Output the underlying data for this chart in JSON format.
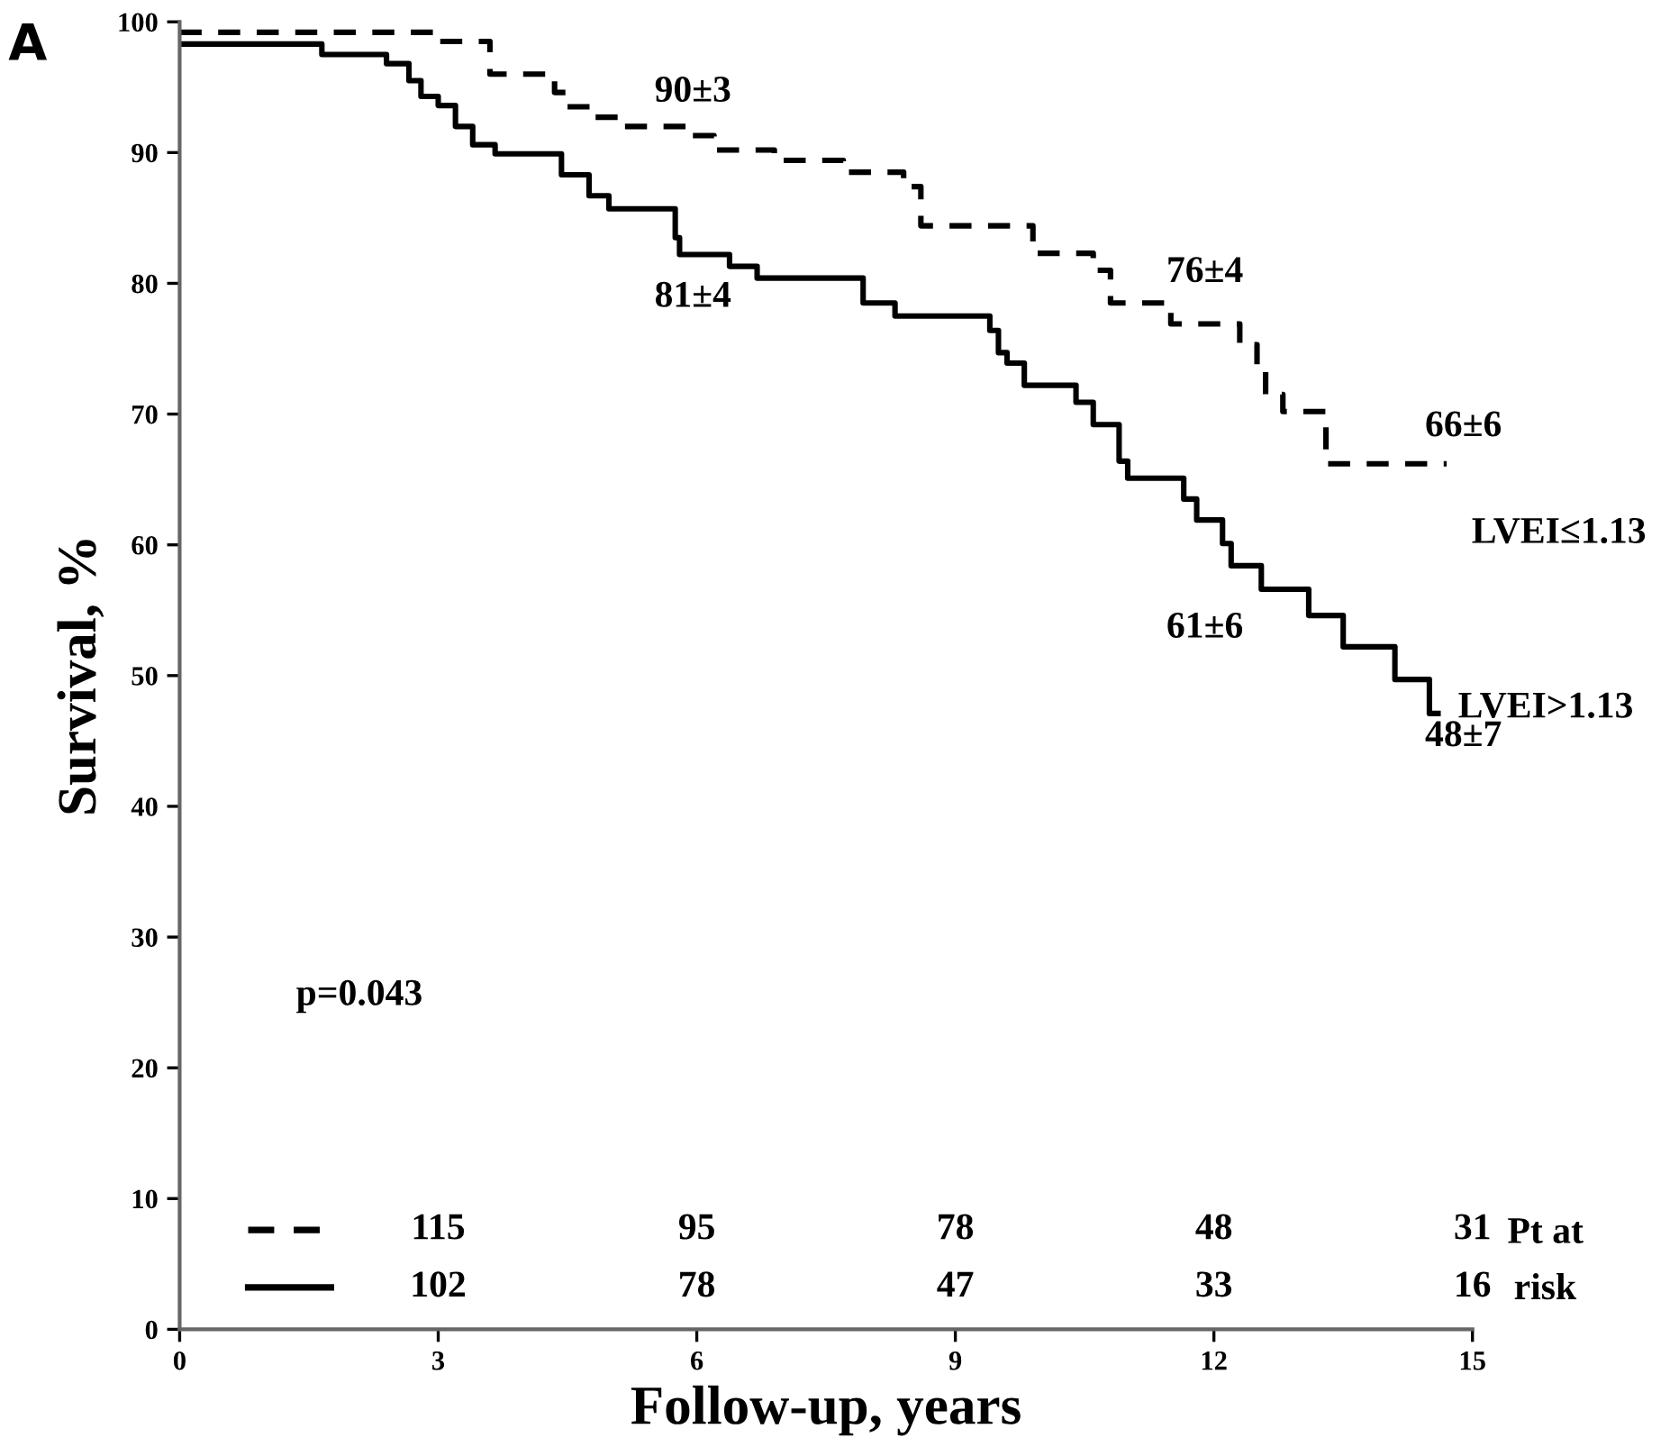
{
  "chart_data": {
    "type": "step",
    "title": "A",
    "xlabel": "Follow-up, years",
    "ylabel": "Survival, %",
    "xlim": [
      0,
      15
    ],
    "xticks": [
      0,
      3,
      6,
      9,
      12,
      15
    ],
    "ylim": [
      0,
      100
    ],
    "yticks": [
      0,
      10,
      20,
      30,
      40,
      50,
      60,
      70,
      80,
      90,
      100
    ],
    "grid": false,
    "legend": false,
    "series": [
      {
        "name": "LVEI≤1.13",
        "color": "#000000",
        "line_style": "dashed",
        "x": [
          0,
          3.0,
          3.6,
          4.35,
          4.5,
          4.8,
          5.1,
          5.9,
          6.2,
          6.9,
          7.7,
          8.4,
          8.6,
          9.9,
          10.6,
          10.8,
          11.5,
          12.3,
          12.5,
          12.6,
          12.8,
          13.3,
          14.7
        ],
        "values": [
          99.2,
          98.5,
          96,
          94.6,
          93.5,
          92.7,
          92,
          91.3,
          90.2,
          89.4,
          88.5,
          87.4,
          84.4,
          82.3,
          81,
          78.5,
          76.9,
          75.3,
          73.4,
          71.5,
          70.2,
          66.2,
          66.2
        ]
      },
      {
        "name": "LVEI>1.13",
        "color": "#000000",
        "line_style": "solid",
        "x": [
          0,
          1.65,
          2.4,
          2.66,
          2.8,
          3.0,
          3.2,
          3.4,
          3.66,
          4.43,
          4.75,
          4.98,
          5.75,
          5.8,
          6.38,
          6.7,
          7.93,
          8.3,
          9.4,
          9.5,
          9.6,
          9.8,
          10.4,
          10.6,
          10.9,
          11.0,
          11.65,
          11.8,
          12.1,
          12.2,
          12.55,
          13.1,
          13.5,
          14.1,
          14.5,
          14.6
        ],
        "values": [
          98.3,
          97.5,
          96.8,
          95.5,
          94.3,
          93.6,
          92,
          90.6,
          89.9,
          88.3,
          86.7,
          85.7,
          83.5,
          82.2,
          81.3,
          80.4,
          78.5,
          77.5,
          76.4,
          74.7,
          73.9,
          72.2,
          70.9,
          69.2,
          66.4,
          65.1,
          63.5,
          61.9,
          60.1,
          58.4,
          56.6,
          54.6,
          52.2,
          49.7,
          47.1,
          47.1
        ]
      }
    ],
    "annotations": [
      "90±3",
      "81±4",
      "76±4",
      "66±6",
      "61±6",
      "48±7",
      "p=0.043",
      "115",
      "95",
      "78",
      "48",
      "31",
      "102",
      "78",
      "47",
      "33",
      "16",
      "Pt at",
      "risk"
    ]
  }
}
